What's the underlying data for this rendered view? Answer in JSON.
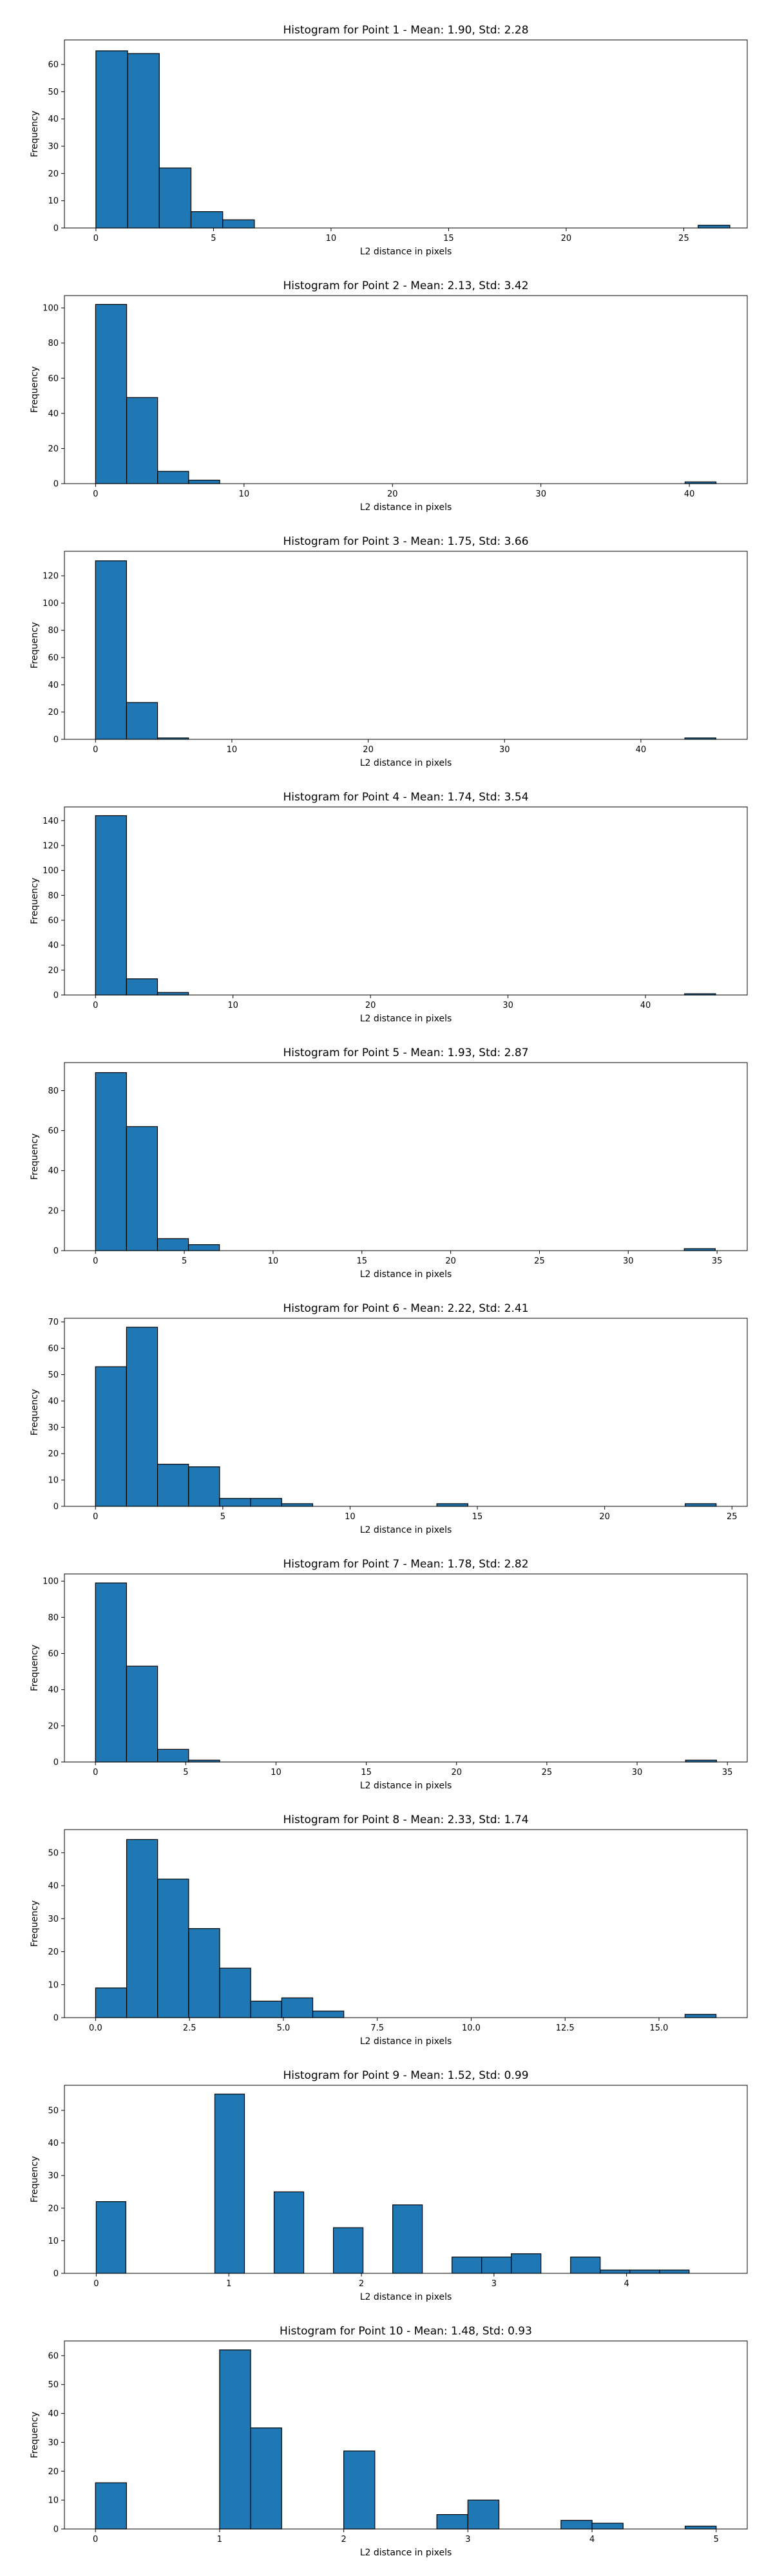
{
  "style": {
    "bar_color": "#1f77b4",
    "edge_color": "#000000"
  },
  "chart_data": [
    {
      "type": "bar",
      "title": "Histogram for Point 1 - Mean: 1.90, Std: 2.28",
      "xlabel": "L2 distance in pixels",
      "ylabel": "Frequency",
      "xlim": [
        -1.34,
        27.7
      ],
      "ylim": [
        0,
        69
      ],
      "xticks": [
        0,
        5,
        10,
        15,
        20,
        25
      ],
      "xticklabels": [
        "0",
        "5",
        "10",
        "15",
        "20",
        "25"
      ],
      "yticks": [
        0,
        10,
        20,
        30,
        40,
        50,
        60
      ],
      "yticklabels": [
        "0",
        "10",
        "20",
        "30",
        "40",
        "50",
        "60"
      ],
      "bin_edges": [
        0,
        1.348,
        2.696,
        4.044,
        5.392,
        6.74,
        8.088,
        9.436,
        10.784,
        12.132,
        13.48,
        14.828,
        16.176,
        17.524,
        18.872,
        20.22,
        21.568,
        22.916,
        24.264,
        25.612,
        26.96
      ],
      "values": [
        65,
        64,
        22,
        6,
        3,
        0,
        0,
        0,
        0,
        0,
        0,
        0,
        0,
        0,
        0,
        0,
        0,
        0,
        0,
        1
      ]
    },
    {
      "type": "bar",
      "title": "Histogram for Point 2 - Mean: 2.13, Std: 3.42",
      "xlabel": "L2 distance in pixels",
      "ylabel": "Frequency",
      "xlim": [
        -2.1,
        43.9
      ],
      "ylim": [
        0,
        107
      ],
      "xticks": [
        0,
        10,
        20,
        30,
        40
      ],
      "xticklabels": [
        "0",
        "10",
        "20",
        "30",
        "40"
      ],
      "yticks": [
        0,
        20,
        40,
        60,
        80,
        100
      ],
      "yticklabels": [
        "0",
        "20",
        "40",
        "60",
        "80",
        "100"
      ],
      "bin_edges": [
        0,
        2.09,
        4.18,
        6.27,
        8.36,
        10.45,
        12.54,
        14.63,
        16.72,
        18.81,
        20.9,
        22.99,
        25.08,
        27.17,
        29.26,
        31.35,
        33.44,
        35.53,
        37.62,
        39.71,
        41.8
      ],
      "values": [
        102,
        49,
        7,
        2,
        0,
        0,
        0,
        0,
        0,
        0,
        0,
        0,
        0,
        0,
        0,
        0,
        0,
        0,
        0,
        1
      ]
    },
    {
      "type": "bar",
      "title": "Histogram for Point 3 - Mean: 1.75, Std: 3.66",
      "xlabel": "L2 distance in pixels",
      "ylabel": "Frequency",
      "xlim": [
        -2.28,
        47.8
      ],
      "ylim": [
        0,
        138
      ],
      "xticks": [
        0,
        10,
        20,
        30,
        40
      ],
      "xticklabels": [
        "0",
        "10",
        "20",
        "30",
        "40"
      ],
      "yticks": [
        0,
        20,
        40,
        60,
        80,
        100,
        120
      ],
      "yticklabels": [
        "0",
        "20",
        "40",
        "60",
        "80",
        "100",
        "120"
      ],
      "bin_edges": [
        0,
        2.275,
        4.55,
        6.825,
        9.1,
        11.375,
        13.65,
        15.925,
        18.2,
        20.475,
        22.75,
        25.025,
        27.3,
        29.575,
        31.85,
        34.125,
        36.4,
        38.675,
        40.95,
        43.225,
        45.5
      ],
      "values": [
        131,
        27,
        1,
        0,
        0,
        0,
        0,
        0,
        0,
        0,
        0,
        0,
        0,
        0,
        0,
        0,
        0,
        0,
        0,
        1
      ]
    },
    {
      "type": "bar",
      "title": "Histogram for Point 4 - Mean: 1.74, Std: 3.54",
      "xlabel": "L2 distance in pixels",
      "ylabel": "Frequency",
      "xlim": [
        -2.26,
        47.4
      ],
      "ylim": [
        0,
        151
      ],
      "xticks": [
        0,
        10,
        20,
        30,
        40
      ],
      "xticklabels": [
        "0",
        "10",
        "20",
        "30",
        "40"
      ],
      "yticks": [
        0,
        20,
        40,
        60,
        80,
        100,
        120,
        140
      ],
      "yticklabels": [
        "0",
        "20",
        "40",
        "60",
        "80",
        "100",
        "120",
        "140"
      ],
      "bin_edges": [
        0,
        2.255,
        4.51,
        6.765,
        9.02,
        11.275,
        13.53,
        15.785,
        18.04,
        20.295,
        22.55,
        24.805,
        27.06,
        29.315,
        31.57,
        33.825,
        36.08,
        38.335,
        40.59,
        42.845,
        45.1
      ],
      "values": [
        144,
        13,
        2,
        0,
        0,
        0,
        0,
        0,
        0,
        0,
        0,
        0,
        0,
        0,
        0,
        0,
        0,
        0,
        0,
        1
      ]
    },
    {
      "type": "bar",
      "title": "Histogram for Point 5 - Mean: 1.93, Std: 2.87",
      "xlabel": "L2 distance in pixels",
      "ylabel": "Frequency",
      "xlim": [
        -1.75,
        36.7
      ],
      "ylim": [
        0,
        94
      ],
      "xticks": [
        0,
        5,
        10,
        15,
        20,
        25,
        30,
        35
      ],
      "xticklabels": [
        "0",
        "5",
        "10",
        "15",
        "20",
        "25",
        "30",
        "35"
      ],
      "yticks": [
        0,
        20,
        40,
        60,
        80
      ],
      "yticklabels": [
        "0",
        "20",
        "40",
        "60",
        "80"
      ],
      "bin_edges": [
        0,
        1.745,
        3.49,
        5.235,
        6.98,
        8.725,
        10.47,
        12.215,
        13.96,
        15.705,
        17.45,
        19.195,
        20.94,
        22.685,
        24.43,
        26.175,
        27.92,
        29.665,
        31.41,
        33.155,
        34.9
      ],
      "values": [
        89,
        62,
        6,
        3,
        0,
        0,
        0,
        0,
        0,
        0,
        0,
        0,
        0,
        0,
        0,
        0,
        0,
        0,
        0,
        1
      ]
    },
    {
      "type": "bar",
      "title": "Histogram for Point 6 - Mean: 2.22, Std: 2.41",
      "xlabel": "L2 distance in pixels",
      "ylabel": "Frequency",
      "xlim": [
        -1.22,
        25.6
      ],
      "ylim": [
        0,
        71.4
      ],
      "xticks": [
        0,
        5,
        10,
        15,
        20,
        25
      ],
      "xticklabels": [
        "0",
        "5",
        "10",
        "15",
        "20",
        "25"
      ],
      "yticks": [
        0,
        10,
        20,
        30,
        40,
        50,
        60,
        70
      ],
      "yticklabels": [
        "0",
        "10",
        "20",
        "30",
        "40",
        "50",
        "60",
        "70"
      ],
      "bin_edges": [
        0,
        1.219,
        2.438,
        3.657,
        4.876,
        6.095,
        7.314,
        8.533,
        9.752,
        10.971,
        12.19,
        13.409,
        14.628,
        15.847,
        17.066,
        18.285,
        19.504,
        20.723,
        21.942,
        23.161,
        24.38
      ],
      "values": [
        53,
        68,
        16,
        15,
        3,
        3,
        1,
        0,
        0,
        0,
        0,
        1,
        0,
        0,
        0,
        0,
        0,
        0,
        0,
        1
      ]
    },
    {
      "type": "bar",
      "title": "Histogram for Point 7 - Mean: 1.78, Std: 2.82",
      "xlabel": "L2 distance in pixels",
      "ylabel": "Frequency",
      "xlim": [
        -1.72,
        36.1
      ],
      "ylim": [
        0,
        104
      ],
      "xticks": [
        0,
        5,
        10,
        15,
        20,
        25,
        30,
        35
      ],
      "xticklabels": [
        "0",
        "5",
        "10",
        "15",
        "20",
        "25",
        "30",
        "35"
      ],
      "yticks": [
        0,
        20,
        40,
        60,
        80,
        100
      ],
      "yticklabels": [
        "0",
        "20",
        "40",
        "60",
        "80",
        "100"
      ],
      "bin_edges": [
        0,
        1.72,
        3.44,
        5.16,
        6.88,
        8.6,
        10.32,
        12.04,
        13.76,
        15.48,
        17.2,
        18.92,
        20.64,
        22.36,
        24.08,
        25.8,
        27.52,
        29.24,
        30.96,
        32.68,
        34.4
      ],
      "values": [
        99,
        53,
        7,
        1,
        0,
        0,
        0,
        0,
        0,
        0,
        0,
        0,
        0,
        0,
        0,
        0,
        0,
        0,
        0,
        1
      ]
    },
    {
      "type": "bar",
      "title": "Histogram for Point 8 - Mean: 2.33, Std: 1.74",
      "xlabel": "L2 distance in pixels",
      "ylabel": "Frequency",
      "xlim": [
        -0.83,
        17.35
      ],
      "ylim": [
        0,
        57
      ],
      "xticks": [
        0,
        2.5,
        5,
        7.5,
        10,
        12.5,
        15
      ],
      "xticklabels": [
        "0.0",
        "2.5",
        "5.0",
        "7.5",
        "10.0",
        "12.5",
        "15.0"
      ],
      "yticks": [
        0,
        10,
        20,
        30,
        40,
        50
      ],
      "yticklabels": [
        "0",
        "10",
        "20",
        "30",
        "40",
        "50"
      ],
      "bin_edges": [
        0,
        0.826,
        1.652,
        2.478,
        3.304,
        4.13,
        4.956,
        5.782,
        6.608,
        7.434,
        8.26,
        9.086,
        9.912,
        10.738,
        11.564,
        12.39,
        13.216,
        14.042,
        14.868,
        15.694,
        16.52
      ],
      "values": [
        9,
        54,
        42,
        27,
        15,
        5,
        6,
        2,
        0,
        0,
        0,
        0,
        0,
        0,
        0,
        0,
        0,
        0,
        0,
        1
      ]
    },
    {
      "type": "bar",
      "title": "Histogram for Point 9 - Mean: 1.52, Std: 0.99",
      "xlabel": "L2 distance in pixels",
      "ylabel": "Frequency",
      "xlim": [
        -0.24,
        4.91
      ],
      "ylim": [
        0,
        57.7
      ],
      "xticks": [
        0,
        1,
        2,
        3,
        4
      ],
      "xticklabels": [
        "0",
        "1",
        "2",
        "3",
        "4"
      ],
      "yticks": [
        0,
        10,
        20,
        30,
        40,
        50
      ],
      "yticklabels": [
        "0",
        "10",
        "20",
        "30",
        "40",
        "50"
      ],
      "bin_edges": [
        0,
        0.2236,
        0.4472,
        0.6708,
        0.8944,
        1.118,
        1.3416,
        1.5652,
        1.7888,
        2.0124,
        2.236,
        2.4596,
        2.6832,
        2.9068,
        3.1304,
        3.354,
        3.5776,
        3.8012,
        4.0248,
        4.2484,
        4.472
      ],
      "values": [
        22,
        0,
        0,
        0,
        55,
        0,
        25,
        0,
        14,
        0,
        21,
        0,
        5,
        5,
        6,
        0,
        5,
        1,
        1,
        1
      ]
    },
    {
      "type": "bar",
      "title": "Histogram for Point 10 - Mean: 1.48, Std: 0.93",
      "xlabel": "L2 distance in pixels",
      "ylabel": "Frequency",
      "xlim": [
        -0.25,
        5.25
      ],
      "ylim": [
        0,
        65.1
      ],
      "xticks": [
        0,
        1,
        2,
        3,
        4,
        5
      ],
      "xticklabels": [
        "0",
        "1",
        "2",
        "3",
        "4",
        "5"
      ],
      "yticks": [
        0,
        10,
        20,
        30,
        40,
        50,
        60
      ],
      "yticklabels": [
        "0",
        "10",
        "20",
        "30",
        "40",
        "50",
        "60"
      ],
      "bin_edges": [
        0,
        0.25,
        0.5,
        0.75,
        1.0,
        1.25,
        1.5,
        1.75,
        2.0,
        2.25,
        2.5,
        2.75,
        3.0,
        3.25,
        3.5,
        3.75,
        4.0,
        4.25,
        4.5,
        4.75,
        5.0
      ],
      "values": [
        16,
        0,
        0,
        0,
        62,
        35,
        0,
        0,
        27,
        0,
        0,
        5,
        10,
        0,
        0,
        3,
        2,
        0,
        0,
        1
      ]
    }
  ]
}
